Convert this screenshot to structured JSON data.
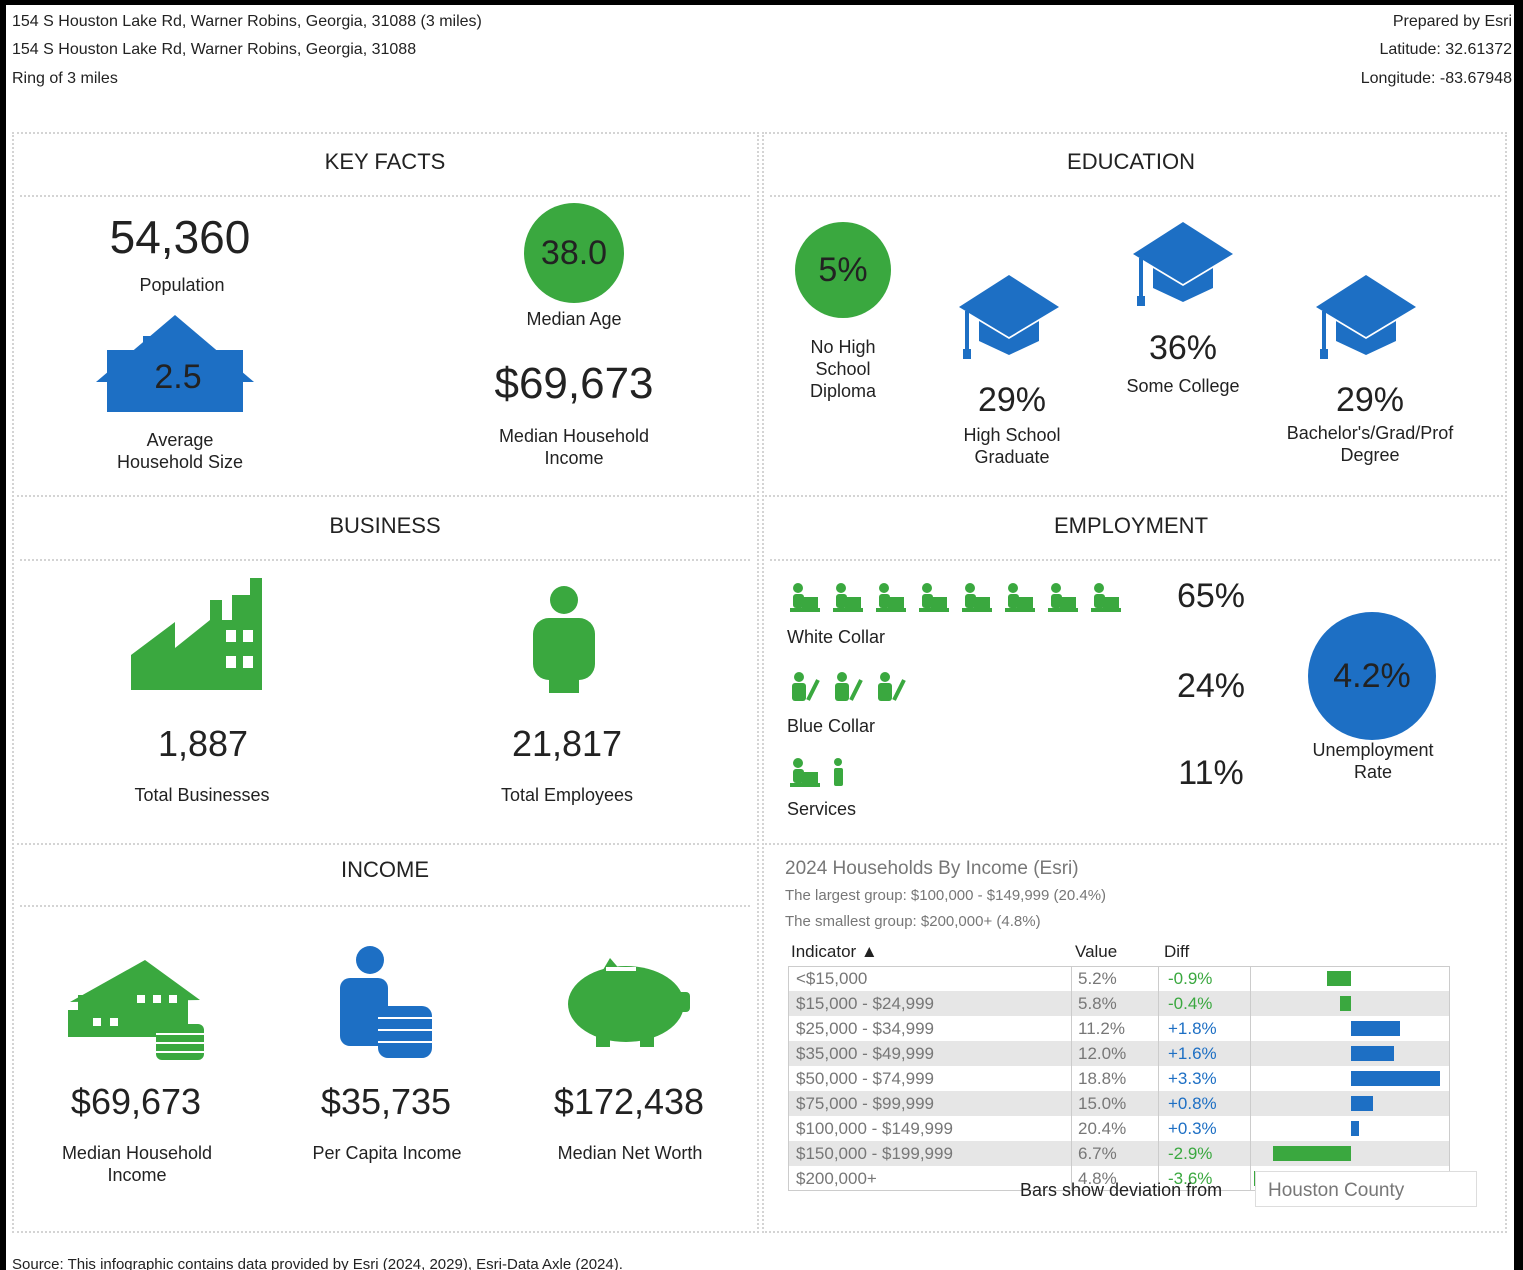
{
  "header": {
    "address_ring": "154 S Houston Lake Rd, Warner Robins, Georgia, 31088 (3 miles)",
    "address": "154 S Houston Lake Rd, Warner Robins, Georgia, 31088",
    "ring": "Ring of 3 miles",
    "prepared": "Prepared by Esri",
    "latitude": "Latitude: 32.61372",
    "longitude": "Longitude: -83.67948"
  },
  "key_facts": {
    "title": "KEY FACTS",
    "population": {
      "value": "54,360",
      "label": "Population"
    },
    "household_size": {
      "value": "2.5",
      "label": "Average Household Size"
    },
    "median_age": {
      "value": "38.0",
      "label": "Median Age"
    },
    "median_household_income": {
      "value": "$69,673",
      "label": "Median Household Income"
    }
  },
  "education": {
    "title": "EDUCATION",
    "items": [
      {
        "value": "5%",
        "label": "No High School Diploma"
      },
      {
        "value": "29%",
        "label": "High School Graduate"
      },
      {
        "value": "36%",
        "label": "Some College"
      },
      {
        "value": "29%",
        "label": "Bachelor's/Grad/Prof Degree"
      }
    ]
  },
  "business": {
    "title": "BUSINESS",
    "businesses": {
      "value": "1,887",
      "label": "Total Businesses"
    },
    "employees": {
      "value": "21,817",
      "label": "Total Employees"
    }
  },
  "employment": {
    "title": "EMPLOYMENT",
    "rows": [
      {
        "label": "White Collar",
        "value": "65%"
      },
      {
        "label": "Blue Collar",
        "value": "24%"
      },
      {
        "label": "Services",
        "value": "11%"
      }
    ],
    "unemployment": {
      "value": "4.2%",
      "label": "Unemployment Rate"
    }
  },
  "income": {
    "title": "INCOME",
    "items": [
      {
        "value": "$69,673",
        "label": "Median Household Income"
      },
      {
        "value": "$35,735",
        "label": "Per Capita Income"
      },
      {
        "value": "$172,438",
        "label": "Median Net Worth"
      }
    ]
  },
  "households": {
    "title": "2024 Households By Income (Esri)",
    "largest": "The largest group: $100,000 - $149,999 (20.4%)",
    "smallest": "The smallest group: $200,000+ (4.8%)",
    "columns": [
      "Indicator ▲",
      "Value",
      "Diff"
    ],
    "rows": [
      {
        "indicator": "<$15,000",
        "value": "5.2%",
        "diff": {
          "value": -0.9,
          "label": "-0.9%"
        }
      },
      {
        "indicator": "$15,000 - $24,999",
        "value": "5.8%",
        "diff": {
          "value": -0.4,
          "label": "-0.4%"
        }
      },
      {
        "indicator": "$25,000 - $34,999",
        "value": "11.2%",
        "diff": {
          "value": 1.8,
          "label": "+1.8%"
        }
      },
      {
        "indicator": "$35,000 - $49,999",
        "value": "12.0%",
        "diff": {
          "value": 1.6,
          "label": "+1.6%"
        }
      },
      {
        "indicator": "$50,000 - $74,999",
        "value": "18.8%",
        "diff": {
          "value": 3.3,
          "label": "+3.3%"
        }
      },
      {
        "indicator": "$75,000 - $99,999",
        "value": "15.0%",
        "diff": {
          "value": 0.8,
          "label": "+0.8%"
        }
      },
      {
        "indicator": "$100,000 - $149,999",
        "value": "20.4%",
        "diff": {
          "value": 0.3,
          "label": "+0.3%"
        }
      },
      {
        "indicator": "$150,000 - $199,999",
        "value": "6.7%",
        "diff": {
          "value": -2.9,
          "label": "-2.9%"
        }
      },
      {
        "indicator": "$200,000+",
        "value": "4.8%",
        "diff": {
          "value": -3.6,
          "label": "-3.6%"
        }
      }
    ],
    "footnote": "Bars show deviation from",
    "compare": "Houston County"
  },
  "source": "Source: This infographic contains data provided by Esri (2024, 2029), Esri-Data Axle (2024)."
}
